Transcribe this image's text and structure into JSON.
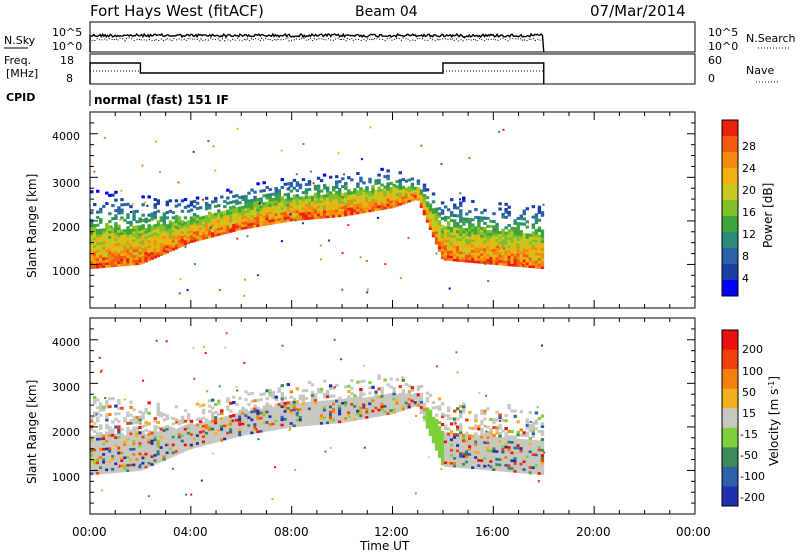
{
  "header": {
    "radar": "Fort Hays West (fitACF)",
    "beam": "Beam 04",
    "date": "07/Mar/2014"
  },
  "labels": {
    "nsky": "N.Sky",
    "nsearch": "N.Search",
    "freq_line1": "Freq.",
    "freq_line2": "[MHz]",
    "nave": "Nave",
    "cpid": "CPID",
    "cpid_value": "normal (fast) 151 IF"
  },
  "noise_panel": {
    "left_ticks": [
      "10^5",
      "10^0"
    ],
    "right_ticks": [
      "10^5",
      "10^0"
    ]
  },
  "freq_panel": {
    "left_ticks": [
      "18",
      "8"
    ],
    "right_ticks": [
      "60",
      "0"
    ],
    "freq_segments": [
      {
        "start": 0.0,
        "end": 2.0,
        "level": "high"
      },
      {
        "start": 2.0,
        "end": 14.0,
        "level": "low"
      },
      {
        "start": 14.0,
        "end": 18.0,
        "level": "high"
      }
    ]
  },
  "chart_data": [
    {
      "type": "heatmap",
      "title": "Power",
      "xlabel": "Time UT",
      "ylabel": "Slant Range [km]",
      "xlim": [
        0,
        24
      ],
      "ylim": [
        0,
        4500
      ],
      "yticks": [
        "1000",
        "2000",
        "3000",
        "4000"
      ],
      "colorbar": {
        "label": "Power [dB]",
        "ticks": [
          "28",
          "24",
          "20",
          "16",
          "12",
          "8",
          "4"
        ],
        "colors": [
          "#0000ff",
          "#1a3fa0",
          "#2e62a8",
          "#2c8a78",
          "#3fa43a",
          "#7fbf2a",
          "#c9c820",
          "#f0b010",
          "#f58a10",
          "#f25a10",
          "#ee2010"
        ]
      },
      "echo_band": [
        {
          "t": 0.0,
          "lower": 900,
          "upper": 2700
        },
        {
          "t": 2.0,
          "lower": 1000,
          "upper": 2600
        },
        {
          "t": 4.0,
          "lower": 1500,
          "upper": 2500
        },
        {
          "t": 6.0,
          "lower": 1800,
          "upper": 2800
        },
        {
          "t": 8.0,
          "lower": 2000,
          "upper": 3000
        },
        {
          "t": 10.0,
          "lower": 2100,
          "upper": 3100
        },
        {
          "t": 12.0,
          "lower": 2300,
          "upper": 3200
        },
        {
          "t": 13.0,
          "lower": 2500,
          "upper": 3000
        },
        {
          "t": 14.0,
          "lower": 1100,
          "upper": 2600
        },
        {
          "t": 18.0,
          "lower": 900,
          "upper": 2400
        }
      ]
    },
    {
      "type": "heatmap",
      "title": "Velocity",
      "xlabel": "Time UT",
      "ylabel": "Slant Range [km]",
      "xlim": [
        0,
        24
      ],
      "ylim": [
        0,
        4500
      ],
      "yticks": [
        "1000",
        "2000",
        "3000",
        "4000"
      ],
      "colorbar": {
        "label": "Velocity [m s^-1]",
        "ticks": [
          "200",
          "100",
          "50",
          "15",
          "-15",
          "-50",
          "-100",
          "-200"
        ],
        "colors": [
          "#1f2fb0",
          "#2f5fa8",
          "#3a8a5a",
          "#7fcf3a",
          "#c8c8c0",
          "#f0b020",
          "#f58010",
          "#f04010",
          "#e81010"
        ]
      },
      "echo_band": [
        {
          "t": 0.0,
          "lower": 900,
          "upper": 2700
        },
        {
          "t": 2.0,
          "lower": 1000,
          "upper": 2600
        },
        {
          "t": 4.0,
          "lower": 1500,
          "upper": 2500
        },
        {
          "t": 6.0,
          "lower": 1800,
          "upper": 2800
        },
        {
          "t": 8.0,
          "lower": 2000,
          "upper": 3000
        },
        {
          "t": 10.0,
          "lower": 2100,
          "upper": 3100
        },
        {
          "t": 12.0,
          "lower": 2300,
          "upper": 3200
        },
        {
          "t": 13.0,
          "lower": 2500,
          "upper": 3000
        },
        {
          "t": 14.0,
          "lower": 1100,
          "upper": 2600
        },
        {
          "t": 18.0,
          "lower": 900,
          "upper": 2400
        }
      ]
    }
  ],
  "time_axis": {
    "label": "Time UT",
    "ticks": [
      "00:00",
      "04:00",
      "08:00",
      "12:00",
      "16:00",
      "20:00",
      "00:00"
    ]
  }
}
